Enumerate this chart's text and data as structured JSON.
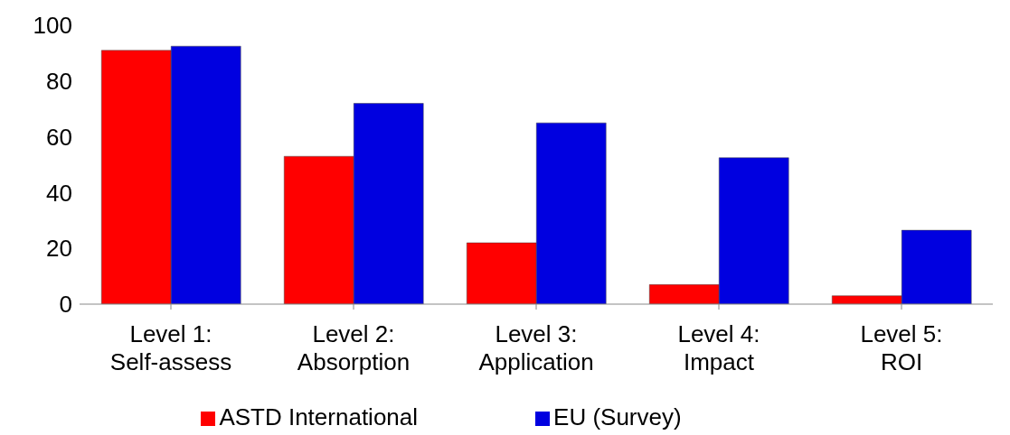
{
  "chart_data": {
    "type": "bar",
    "categories": [
      "Level 1:\nSelf-assess",
      "Level 2:\nAbsorption",
      "Level 3:\nApplication",
      "Level 4:\nImpact",
      "Level 5:\nROI"
    ],
    "series": [
      {
        "name": "ASTD International",
        "color": "#ff0000",
        "values": [
          91,
          53,
          22,
          7,
          3
        ]
      },
      {
        "name": "EU (Survey)",
        "color": "#0000e0",
        "values": [
          92.5,
          72,
          65,
          52.5,
          26.5
        ]
      }
    ],
    "ylim": [
      0,
      100
    ],
    "yticks": [
      0,
      20,
      40,
      60,
      80,
      100
    ],
    "grid": false,
    "legend": "bottom"
  }
}
